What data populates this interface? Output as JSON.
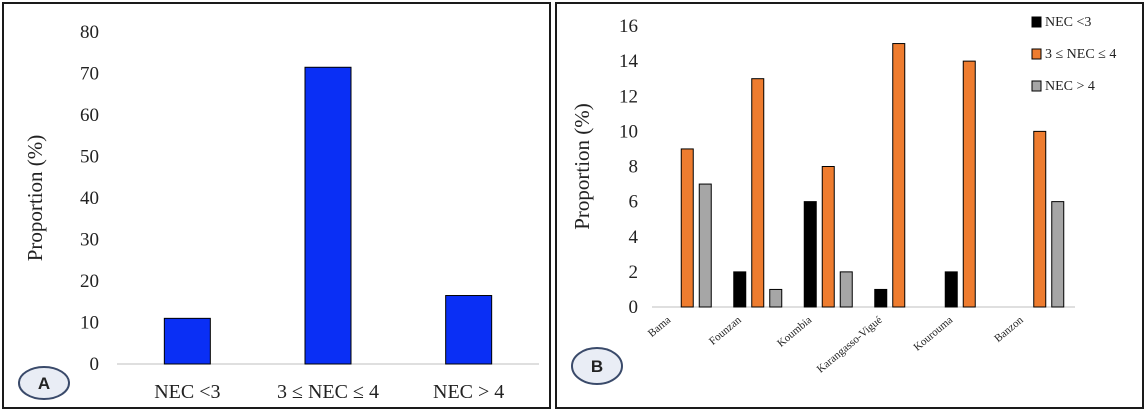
{
  "chart_data": [
    {
      "panel_label": "A",
      "type": "bar",
      "categories": [
        "NEC <3",
        "3 ≤ NEC ≤ 4",
        "NEC > 4"
      ],
      "values": [
        11,
        71.5,
        16.5
      ],
      "ylabel": "Proportion (%)",
      "ylim": [
        0,
        80
      ],
      "yticks": [
        0,
        10,
        20,
        30,
        40,
        50,
        60,
        70,
        80
      ],
      "colors": [
        "#0a2ff5"
      ],
      "grid": false
    },
    {
      "panel_label": "B",
      "type": "bar",
      "categories": [
        "Bama",
        "Founzan",
        "Koumbia",
        "Karangasso-Vigué",
        "Kourouma",
        "Banzon"
      ],
      "series": [
        {
          "name": "NEC <3",
          "values": [
            0,
            2,
            6,
            1,
            2,
            0
          ],
          "color": "#000000"
        },
        {
          "name": "3 ≤ NEC ≤ 4",
          "values": [
            9,
            13,
            8,
            15,
            14,
            10
          ],
          "color": "#ee7c2f"
        },
        {
          "name": "NEC > 4",
          "values": [
            7,
            1,
            2,
            0,
            0,
            6
          ],
          "color": "#a6a6a6"
        }
      ],
      "ylabel": "Proportion (%)",
      "ylim": [
        0,
        16
      ],
      "yticks": [
        0,
        2,
        4,
        6,
        8,
        10,
        12,
        14,
        16
      ],
      "legend": "top-right",
      "grid": false
    }
  ]
}
